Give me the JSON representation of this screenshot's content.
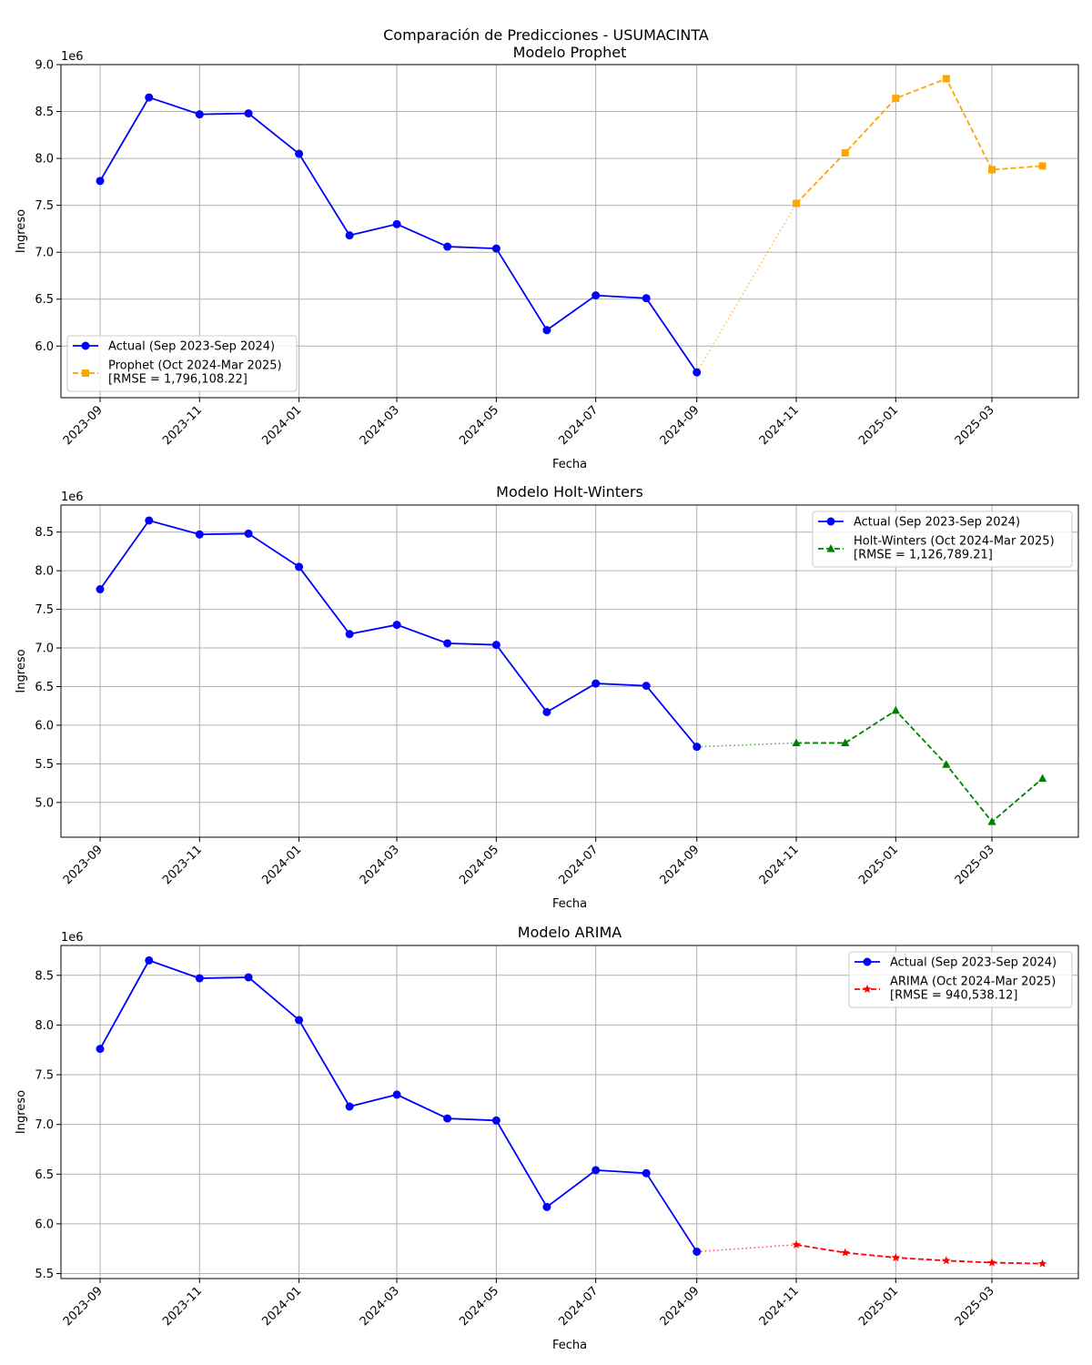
{
  "figure": {
    "suptitle": "Comparación de Predicciones - USUMACINTA"
  },
  "chart_data": [
    {
      "type": "line",
      "title": "Modelo Prophet",
      "xlabel": "Fecha",
      "ylabel": "Ingreso",
      "y_offset_label": "1e6",
      "ylim": [
        5.45,
        9.0
      ],
      "yticks": [
        6.0,
        6.5,
        7.0,
        7.5,
        8.0,
        8.5,
        9.0
      ],
      "xlim": [
        "2023-08-08",
        "2025-04-23"
      ],
      "xticks": [
        "2023-09",
        "2023-11",
        "2024-01",
        "2024-03",
        "2024-05",
        "2024-07",
        "2024-09",
        "2024-11",
        "2025-01",
        "2025-03"
      ],
      "grid": true,
      "legend_position": "lower-left",
      "actual": {
        "name": "Actual (Sep 2023-Sep 2024)",
        "color": "#0000ff",
        "marker": "circle",
        "dates": [
          "2023-09-01",
          "2023-10-01",
          "2023-11-01",
          "2023-12-01",
          "2024-01-01",
          "2024-02-01",
          "2024-03-01",
          "2024-04-01",
          "2024-05-01",
          "2024-06-01",
          "2024-07-01",
          "2024-08-01",
          "2024-09-01"
        ],
        "values": [
          7.76,
          8.65,
          8.47,
          8.48,
          8.05,
          7.18,
          7.3,
          7.06,
          7.04,
          6.17,
          6.54,
          6.51,
          5.72
        ]
      },
      "forecast": {
        "name": "Prophet (Oct 2024-Mar 2025)",
        "rmse_label": "[RMSE = 1,796,108.22]",
        "color": "#ffa500",
        "marker": "square",
        "dates": [
          "2024-11-01",
          "2024-12-01",
          "2025-01-01",
          "2025-02-01",
          "2025-03-01",
          "2025-04-01"
        ],
        "values": [
          7.52,
          8.06,
          8.64,
          8.85,
          7.88,
          7.92
        ]
      }
    },
    {
      "type": "line",
      "title": "Modelo Holt-Winters",
      "xlabel": "Fecha",
      "ylabel": "Ingreso",
      "y_offset_label": "1e6",
      "ylim": [
        4.55,
        8.85
      ],
      "yticks": [
        5.0,
        5.5,
        6.0,
        6.5,
        7.0,
        7.5,
        8.0,
        8.5
      ],
      "xlim": [
        "2023-08-08",
        "2025-04-23"
      ],
      "xticks": [
        "2023-09",
        "2023-11",
        "2024-01",
        "2024-03",
        "2024-05",
        "2024-07",
        "2024-09",
        "2024-11",
        "2025-01",
        "2025-03"
      ],
      "grid": true,
      "legend_position": "upper-right",
      "actual": {
        "name": "Actual (Sep 2023-Sep 2024)",
        "color": "#0000ff",
        "marker": "circle",
        "dates": [
          "2023-09-01",
          "2023-10-01",
          "2023-11-01",
          "2023-12-01",
          "2024-01-01",
          "2024-02-01",
          "2024-03-01",
          "2024-04-01",
          "2024-05-01",
          "2024-06-01",
          "2024-07-01",
          "2024-08-01",
          "2024-09-01"
        ],
        "values": [
          7.76,
          8.65,
          8.47,
          8.48,
          8.05,
          7.18,
          7.3,
          7.06,
          7.04,
          6.17,
          6.54,
          6.51,
          5.72
        ]
      },
      "forecast": {
        "name": "Holt-Winters (Oct 2024-Mar 2025)",
        "rmse_label": "[RMSE = 1,126,789.21]",
        "color": "#008000",
        "marker": "triangle",
        "dates": [
          "2024-11-01",
          "2024-12-01",
          "2025-01-01",
          "2025-02-01",
          "2025-03-01",
          "2025-04-01"
        ],
        "values": [
          5.77,
          5.77,
          6.19,
          5.49,
          4.75,
          5.31
        ]
      }
    },
    {
      "type": "line",
      "title": "Modelo ARIMA",
      "xlabel": "Fecha",
      "ylabel": "Ingreso",
      "y_offset_label": "1e6",
      "ylim": [
        5.45,
        8.8
      ],
      "yticks": [
        5.5,
        6.0,
        6.5,
        7.0,
        7.5,
        8.0,
        8.5
      ],
      "xlim": [
        "2023-08-08",
        "2025-04-23"
      ],
      "xticks": [
        "2023-09",
        "2023-11",
        "2024-01",
        "2024-03",
        "2024-05",
        "2024-07",
        "2024-09",
        "2024-11",
        "2025-01",
        "2025-03"
      ],
      "grid": true,
      "legend_position": "upper-right",
      "actual": {
        "name": "Actual (Sep 2023-Sep 2024)",
        "color": "#0000ff",
        "marker": "circle",
        "dates": [
          "2023-09-01",
          "2023-10-01",
          "2023-11-01",
          "2023-12-01",
          "2024-01-01",
          "2024-02-01",
          "2024-03-01",
          "2024-04-01",
          "2024-05-01",
          "2024-06-01",
          "2024-07-01",
          "2024-08-01",
          "2024-09-01"
        ],
        "values": [
          7.76,
          8.65,
          8.47,
          8.48,
          8.05,
          7.18,
          7.3,
          7.06,
          7.04,
          6.17,
          6.54,
          6.51,
          5.72
        ]
      },
      "forecast": {
        "name": "ARIMA (Oct 2024-Mar 2025)",
        "rmse_label": "[RMSE = 940,538.12]",
        "color": "#ff0000",
        "marker": "star",
        "dates": [
          "2024-11-01",
          "2024-12-01",
          "2025-01-01",
          "2025-02-01",
          "2025-03-01",
          "2025-04-01"
        ],
        "values": [
          5.79,
          5.71,
          5.66,
          5.63,
          5.61,
          5.6
        ]
      }
    }
  ]
}
